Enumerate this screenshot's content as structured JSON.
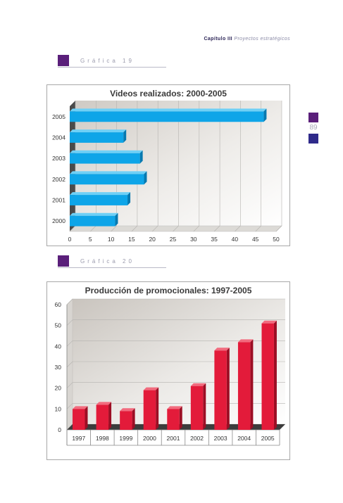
{
  "header": {
    "chapter": "Capítulo III",
    "subtitle": "Proyectos estratégicos"
  },
  "page_number": "89",
  "graph_labels": [
    "Gráfica 19",
    "Gráfica 20"
  ],
  "colors": {
    "purple": "#5a1f7a",
    "indigo": "#2f2a8a",
    "bar_blue": "#0ea5e8",
    "bar_red": "#e31b3a"
  },
  "chart_data": [
    {
      "type": "bar",
      "orientation": "horizontal",
      "title": "Videos realizados: 2000-2005",
      "categories": [
        "2005",
        "2004",
        "2003",
        "2002",
        "2001",
        "2000"
      ],
      "values": [
        47,
        13,
        17,
        18,
        14,
        11
      ],
      "xlim": [
        0,
        50
      ],
      "x_ticks": [
        "0",
        "5",
        "10",
        "15",
        "20",
        "25",
        "30",
        "35",
        "40",
        "45",
        "50"
      ],
      "grid": true
    },
    {
      "type": "bar",
      "orientation": "vertical",
      "title": "Producción de promocionales: 1997-2005",
      "categories": [
        "1997",
        "1998",
        "1999",
        "2000",
        "2001",
        "2002",
        "2003",
        "2004",
        "2005"
      ],
      "values": [
        10,
        12,
        9,
        19,
        10,
        21,
        38,
        42,
        51
      ],
      "ylim": [
        0,
        60
      ],
      "y_ticks": [
        "0",
        "10",
        "20",
        "30",
        "40",
        "50",
        "60"
      ],
      "grid": true
    }
  ]
}
